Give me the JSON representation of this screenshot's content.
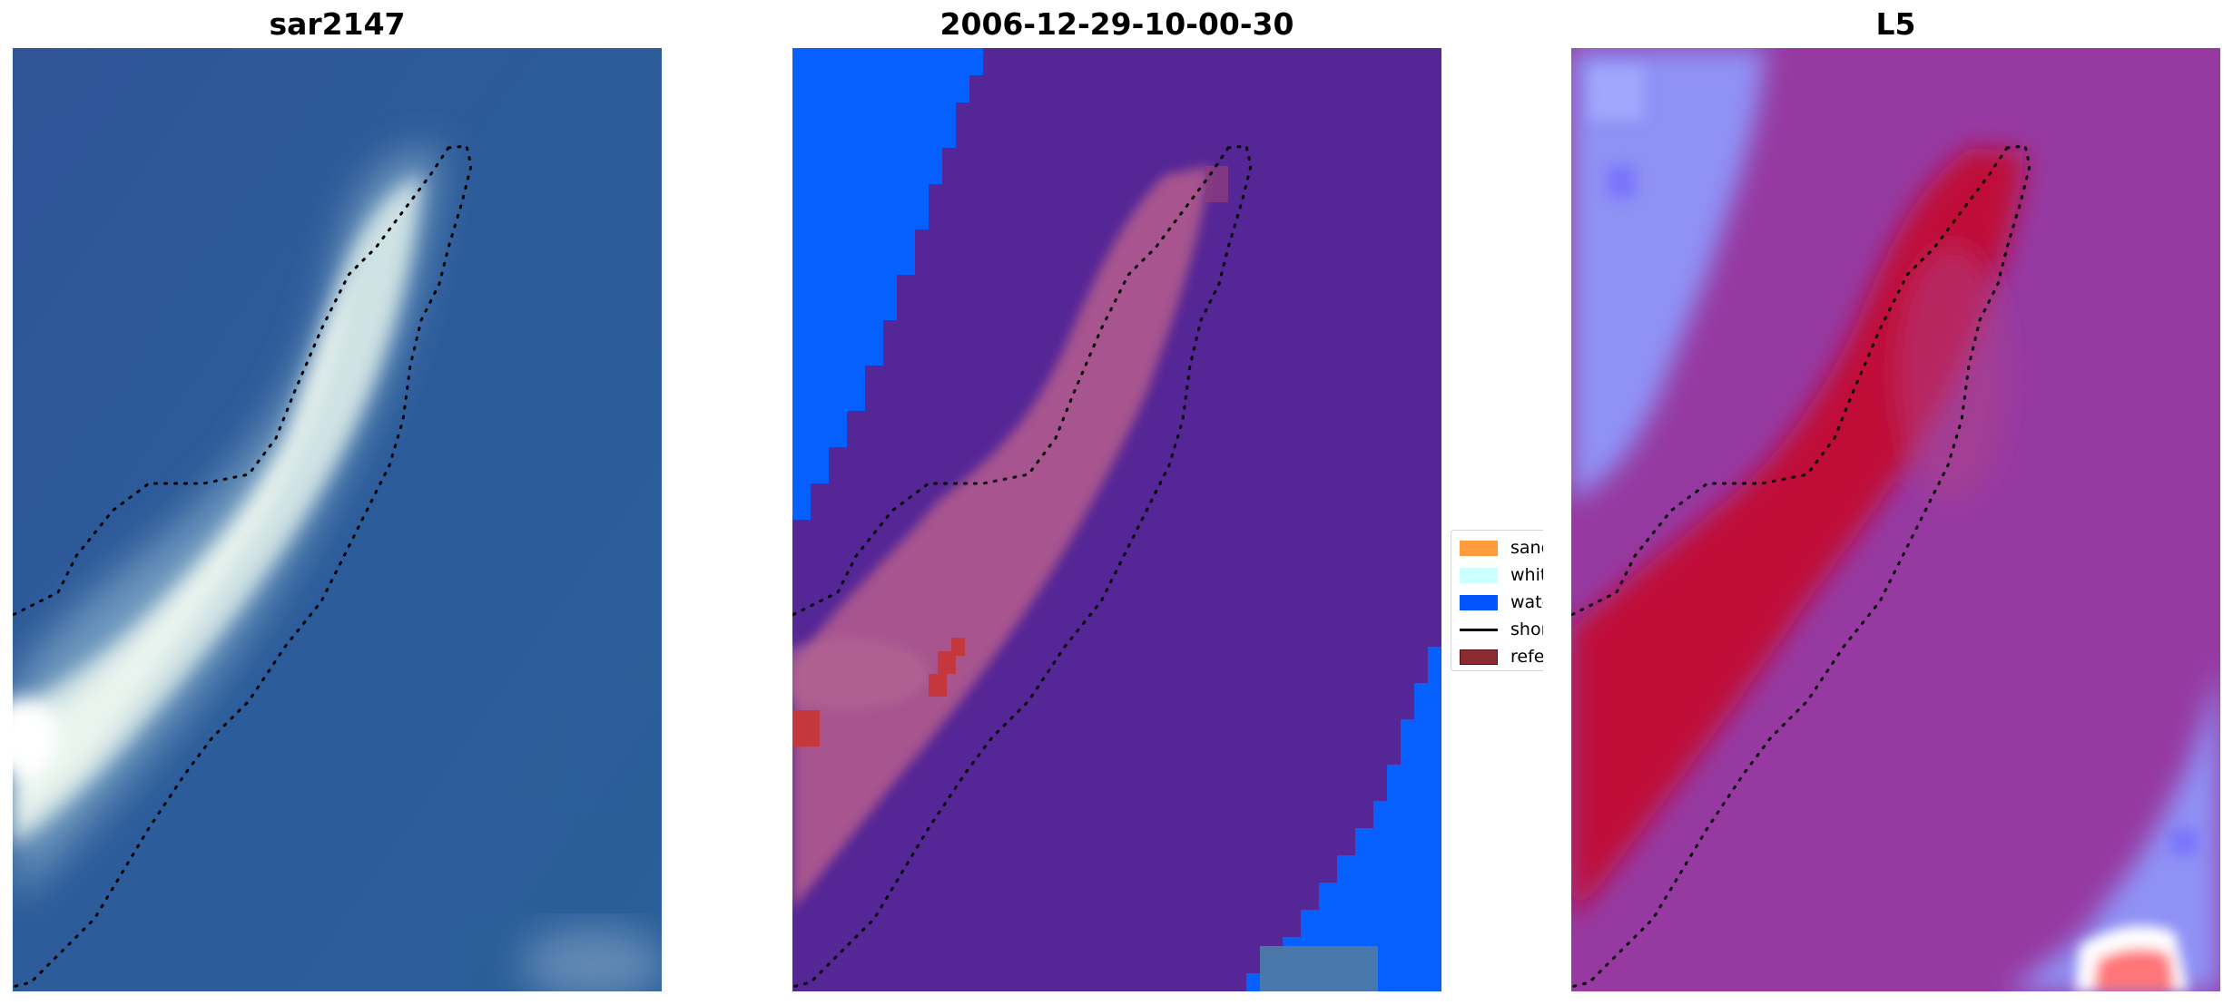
{
  "panels": [
    {
      "title": "sar2147"
    },
    {
      "title": "2006-12-29-10-00-30"
    },
    {
      "title": "L5"
    }
  ],
  "legend": {
    "items": [
      {
        "label": "sand",
        "color": "#ff9a3d"
      },
      {
        "label": "whitewater",
        "color": "#ccffff"
      },
      {
        "label": "water",
        "color": "#0055ff"
      },
      {
        "label": "shoreline",
        "color": "#000000"
      },
      {
        "label": "reference",
        "color": "#8b2a2f"
      }
    ]
  },
  "colors": {
    "ocean_rgb": "#2c5a98",
    "sand_rgb": "#dcecea",
    "class_water": "#0660ff",
    "class_background": "#552696",
    "class_sand_overlay": "#b05a8e",
    "class_reference": "#c4373d",
    "l5_water_low": "#8f9bff",
    "l5_background": "#963aa2",
    "l5_sand_high": "#c00a38",
    "shoreline": "#000000"
  }
}
